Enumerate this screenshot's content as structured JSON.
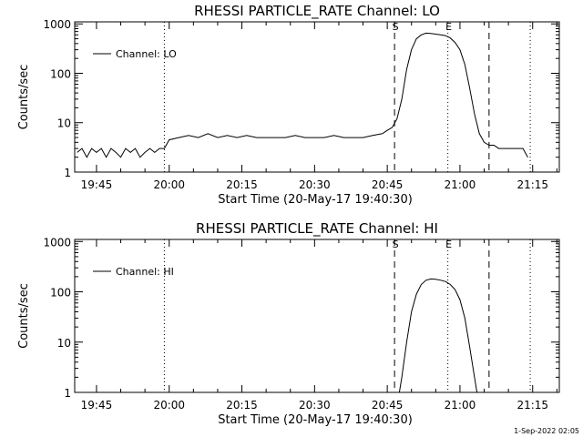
{
  "footer_date": "1-Sep-2022 02:05",
  "chart_data": [
    {
      "type": "line",
      "title": "RHESSI PARTICLE_RATE Channel: LO",
      "xlabel": "Start Time (20-May-17 19:40:30)",
      "ylabel": "Counts/sec",
      "yscale": "log",
      "ylim": [
        1,
        1100
      ],
      "xlim": [
        "19:40:30",
        "21:20:30"
      ],
      "xticks": [
        "19:45",
        "20:00",
        "20:15",
        "20:30",
        "20:45",
        "21:00",
        "21:15"
      ],
      "yticks": [
        "1",
        "10",
        "100",
        "1000"
      ],
      "legend": "top-left",
      "grid": false,
      "markers": [
        {
          "label": "S",
          "time": "20:46:30",
          "style": "dashed"
        },
        {
          "label": "E",
          "time": "20:57:30",
          "style": "dotted"
        }
      ],
      "vlines": [
        {
          "time": "19:59:00",
          "style": "dotted"
        },
        {
          "time": "21:06:00",
          "style": "dashed"
        },
        {
          "time": "21:14:30",
          "style": "dotted"
        }
      ],
      "series": [
        {
          "name": "Channel: LO",
          "x": [
            "19:41",
            "19:42",
            "19:43",
            "19:44",
            "19:45",
            "19:46",
            "19:47",
            "19:48",
            "19:49",
            "19:50",
            "19:51",
            "19:52",
            "19:53",
            "19:54",
            "19:55",
            "19:56",
            "19:57",
            "19:58",
            "19:59",
            "20:00",
            "20:02",
            "20:04",
            "20:06",
            "20:08",
            "20:10",
            "20:12",
            "20:14",
            "20:16",
            "20:18",
            "20:20",
            "20:22",
            "20:24",
            "20:26",
            "20:28",
            "20:30",
            "20:32",
            "20:34",
            "20:36",
            "20:38",
            "20:40",
            "20:42",
            "20:44",
            "20:45",
            "20:46",
            "20:47",
            "20:48",
            "20:49",
            "20:50",
            "20:51",
            "20:52",
            "20:53",
            "20:54",
            "20:55",
            "20:56",
            "20:57",
            "20:58",
            "20:59",
            "21:00",
            "21:01",
            "21:02",
            "21:03",
            "21:04",
            "21:05",
            "21:06",
            "21:07",
            "21:08",
            "21:10",
            "21:12",
            "21:13",
            "21:14"
          ],
          "y": [
            2.5,
            3,
            2,
            3,
            2.5,
            3,
            2,
            3,
            2.5,
            2,
            3,
            2.5,
            3,
            2,
            2.5,
            3,
            2.5,
            3,
            3,
            4.5,
            5,
            5.5,
            5,
            6,
            5,
            5.5,
            5,
            5.5,
            5,
            5,
            5,
            5,
            5.5,
            5,
            5,
            5,
            5.5,
            5,
            5,
            5,
            5.5,
            6,
            7,
            8,
            12,
            30,
            120,
            300,
            500,
            600,
            650,
            640,
            620,
            600,
            580,
            520,
            420,
            300,
            150,
            50,
            15,
            6,
            4,
            3.5,
            3.5,
            3,
            3,
            3,
            3,
            2
          ]
        }
      ]
    },
    {
      "type": "line",
      "title": "RHESSI PARTICLE_RATE Channel: HI",
      "xlabel": "Start Time (20-May-17 19:40:30)",
      "ylabel": "Counts/sec",
      "yscale": "log",
      "ylim": [
        1,
        1100
      ],
      "xlim": [
        "19:40:30",
        "21:20:30"
      ],
      "xticks": [
        "19:45",
        "20:00",
        "20:15",
        "20:30",
        "20:45",
        "21:00",
        "21:15"
      ],
      "yticks": [
        "1",
        "10",
        "100",
        "1000"
      ],
      "legend": "top-left",
      "grid": false,
      "markers": [
        {
          "label": "S",
          "time": "20:46:30",
          "style": "dashed"
        },
        {
          "label": "E",
          "time": "20:57:30",
          "style": "dotted"
        }
      ],
      "vlines": [
        {
          "time": "19:59:00",
          "style": "dotted"
        },
        {
          "time": "21:06:00",
          "style": "dashed"
        },
        {
          "time": "21:14:30",
          "style": "dotted"
        }
      ],
      "series": [
        {
          "name": "Channel: HI",
          "x": [
            "20:47:30",
            "20:48",
            "20:49",
            "20:50",
            "20:51",
            "20:52",
            "20:53",
            "20:54",
            "20:55",
            "20:56",
            "20:57",
            "20:58",
            "20:59",
            "21:00",
            "21:01",
            "21:02",
            "21:03",
            "21:03:30"
          ],
          "y": [
            1,
            2,
            10,
            40,
            90,
            140,
            170,
            180,
            178,
            170,
            160,
            140,
            110,
            70,
            30,
            8,
            2,
            1
          ]
        }
      ]
    }
  ]
}
